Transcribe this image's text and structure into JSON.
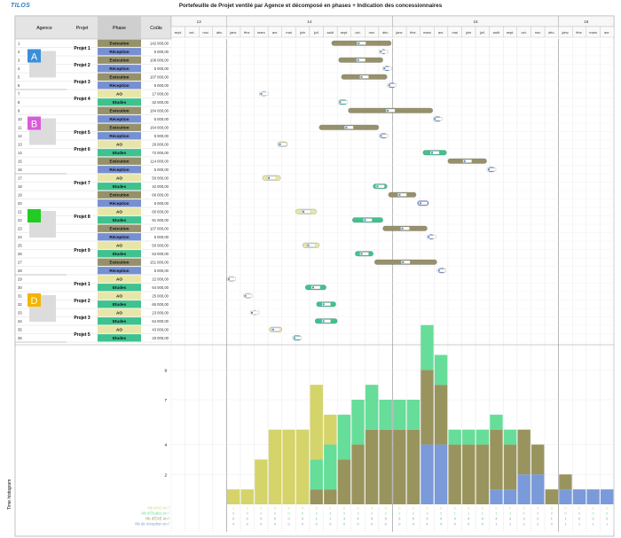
{
  "app": {
    "logo_text": "TILOS",
    "title": "Portefeuille de Projet ventilé par Agence et décomposé en phases + Indication des concessionnaires"
  },
  "headers": {
    "agence": "Agence",
    "projet": "Projet",
    "phase": "Phase",
    "couts": "Coûts"
  },
  "years": [
    "13",
    "14",
    "15",
    "16"
  ],
  "months": [
    "sept.",
    "oct.",
    "nov.",
    "déc.",
    "janv.",
    "févr.",
    "mars",
    "avr.",
    "mai",
    "juin",
    "juil.",
    "août",
    "sept.",
    "oct.",
    "nov.",
    "déc.",
    "janv.",
    "févr.",
    "mars",
    "avr.",
    "mai",
    "juin",
    "juil.",
    "août",
    "sept.",
    "oct.",
    "nov.",
    "déc.",
    "janv.",
    "févr.",
    "mars",
    "avr."
  ],
  "agencies": [
    {
      "letter": "A",
      "color": "#3b8fd8"
    },
    {
      "letter": "B",
      "color": "#d85cd8"
    },
    {
      "letter": "",
      "color": "#22cc22"
    },
    {
      "letter": "D",
      "color": "#f4b400"
    }
  ],
  "phase_colors": {
    "Exécution": "#96916a",
    "Réception": "#7690d2",
    "AO": "#e8e6a6",
    "Etudes": "#3ec28e"
  },
  "rows": [
    {
      "n": "1",
      "project": "Projet 1",
      "phase": "Exécution",
      "cost": "142 000,00",
      "bar": [
        11.6,
        15.9
      ]
    },
    {
      "n": "2",
      "project": "",
      "phase": "Réception",
      "cost": "5 000,00",
      "bar": [
        15.2,
        15.5
      ]
    },
    {
      "n": "3",
      "project": "Projet 2",
      "phase": "Exécution",
      "cost": "108 000,00",
      "bar": [
        12.1,
        15.3
      ]
    },
    {
      "n": "4",
      "project": "",
      "phase": "Réception",
      "cost": "5 000,00",
      "bar": [
        15.4,
        15.8
      ]
    },
    {
      "n": "5",
      "project": "Projet 3",
      "phase": "Exécution",
      "cost": "107 000,00",
      "bar": [
        12.3,
        15.6
      ]
    },
    {
      "n": "6",
      "project": "",
      "phase": "Réception",
      "cost": "5 000,00",
      "bar": [
        15.7,
        16.2
      ]
    },
    {
      "n": "7",
      "project": "Projet 4",
      "phase": "AO",
      "cost": "17 000,00",
      "bar": [
        6.5,
        6.9
      ]
    },
    {
      "n": "8",
      "project": "",
      "phase": "Etudes",
      "cost": "32 000,00",
      "bar": [
        12.1,
        12.7
      ]
    },
    {
      "n": "9",
      "project": "",
      "phase": "Exécution",
      "cost": "164 000,00",
      "bar": [
        12.8,
        18.9
      ]
    },
    {
      "n": "10",
      "project": "",
      "phase": "Réception",
      "cost": "5 000,00",
      "bar": [
        19.0,
        19.5
      ]
    },
    {
      "n": "11",
      "project": "Projet 5",
      "phase": "Exécution",
      "cost": "164 000,00",
      "bar": [
        10.7,
        15.0
      ]
    },
    {
      "n": "12",
      "project": "",
      "phase": "Réception",
      "cost": "5 000,00",
      "bar": [
        15.1,
        15.6
      ]
    },
    {
      "n": "13",
      "project": "Projet 6",
      "phase": "AO",
      "cost": "26 000,00",
      "bar": [
        7.7,
        8.4
      ]
    },
    {
      "n": "14",
      "project": "",
      "phase": "Etudes",
      "cost": "72 000,00",
      "bar": [
        18.2,
        19.9
      ]
    },
    {
      "n": "15",
      "project": "",
      "phase": "Exécution",
      "cost": "114 000,00",
      "bar": [
        20.0,
        22.8
      ]
    },
    {
      "n": "16",
      "project": "",
      "phase": "Réception",
      "cost": "5 000,00",
      "bar": [
        22.9,
        23.4
      ]
    },
    {
      "n": "17",
      "project": "Projet 7",
      "phase": "AO",
      "cost": "50 000,00",
      "bar": [
        6.6,
        7.9
      ]
    },
    {
      "n": "18",
      "project": "",
      "phase": "Etudes",
      "cost": "42 000,00",
      "bar": [
        14.6,
        15.6
      ]
    },
    {
      "n": "19",
      "project": "",
      "phase": "Exécution",
      "cost": "66 000,00",
      "bar": [
        15.7,
        17.7
      ]
    },
    {
      "n": "20",
      "project": "",
      "phase": "Réception",
      "cost": "5 000,00",
      "bar": [
        17.8,
        18.6
      ]
    },
    {
      "n": "21",
      "project": "Projet 8",
      "phase": "AO",
      "cost": "60 000,00",
      "bar": [
        9.0,
        10.5
      ]
    },
    {
      "n": "22",
      "project": "",
      "phase": "Etudes",
      "cost": "91 000,00",
      "bar": [
        13.1,
        15.3
      ]
    },
    {
      "n": "23",
      "project": "",
      "phase": "Exécution",
      "cost": "107 000,00",
      "bar": [
        15.3,
        18.5
      ]
    },
    {
      "n": "24",
      "project": "",
      "phase": "Réception",
      "cost": "5 000,00",
      "bar": [
        18.6,
        19.0
      ]
    },
    {
      "n": "25",
      "project": "Projet 9",
      "phase": "AO",
      "cost": "50 000,00",
      "bar": [
        9.5,
        10.7
      ]
    },
    {
      "n": "26",
      "project": "",
      "phase": "Etudes",
      "cost": "53 000,00",
      "bar": [
        13.3,
        14.6
      ]
    },
    {
      "n": "27",
      "project": "",
      "phase": "Exécution",
      "cost": "151 000,00",
      "bar": [
        14.7,
        19.2
      ]
    },
    {
      "n": "28",
      "project": "",
      "phase": "Réception",
      "cost": "5 000,00",
      "bar": [
        19.3,
        19.8
      ]
    },
    {
      "n": "29",
      "project": "Projet 1",
      "phase": "AO",
      "cost": "22 000,00",
      "bar": [
        4.1,
        4.6
      ]
    },
    {
      "n": "30",
      "project": "",
      "phase": "Etudes",
      "cost": "64 000,00",
      "bar": [
        9.7,
        11.2
      ]
    },
    {
      "n": "31",
      "project": "Projet 2",
      "phase": "AO",
      "cost": "25 000,00",
      "bar": [
        5.3,
        5.8
      ]
    },
    {
      "n": "32",
      "project": "",
      "phase": "Etudes",
      "cost": "65 000,00",
      "bar": [
        10.5,
        11.9
      ]
    },
    {
      "n": "33",
      "project": "Projet 3",
      "phase": "AO",
      "cost": "23 000,00",
      "bar": [
        5.9,
        6.1
      ]
    },
    {
      "n": "34",
      "project": "",
      "phase": "Etudes",
      "cost": "64 000,00",
      "bar": [
        10.4,
        12.0
      ]
    },
    {
      "n": "35",
      "project": "Projet 5",
      "phase": "AO",
      "cost": "43 000,00",
      "bar": [
        7.1,
        8.0
      ]
    },
    {
      "n": "36",
      "project": "",
      "phase": "Etudes",
      "cost": "33 000,00",
      "bar": [
        8.8,
        9.4
      ]
    }
  ],
  "histogram": {
    "title": "Time histogram",
    "y_ticks": [
      "2",
      "4",
      "7",
      "9"
    ],
    "series_labels": [
      "Nb d'AO en /",
      "Nb d'Etudes en /",
      "Nb d'EXE en /",
      "Nb de réception en /"
    ],
    "ao": [
      1,
      1,
      3,
      5,
      5,
      5,
      5,
      2,
      0,
      0,
      0,
      0,
      0,
      0,
      0,
      0,
      0,
      0,
      0,
      0,
      0,
      0,
      0,
      0,
      0,
      0,
      0,
      0
    ],
    "etu": [
      0,
      0,
      0,
      0,
      0,
      0,
      2,
      3,
      3,
      3,
      3,
      2,
      2,
      2,
      3,
      2,
      1,
      1,
      1,
      1,
      1,
      0,
      0,
      0,
      0,
      0,
      0,
      0
    ],
    "exe": [
      0,
      0,
      0,
      0,
      0,
      0,
      1,
      1,
      3,
      4,
      5,
      5,
      5,
      5,
      5,
      4,
      4,
      4,
      4,
      4,
      3,
      3,
      2,
      1,
      1,
      0,
      0,
      0
    ],
    "rec": [
      0,
      0,
      0,
      0,
      0,
      0,
      0,
      0,
      0,
      0,
      0,
      0,
      0,
      0,
      4,
      4,
      0,
      0,
      0,
      1,
      1,
      2,
      2,
      0,
      1,
      1,
      1,
      1
    ]
  }
}
